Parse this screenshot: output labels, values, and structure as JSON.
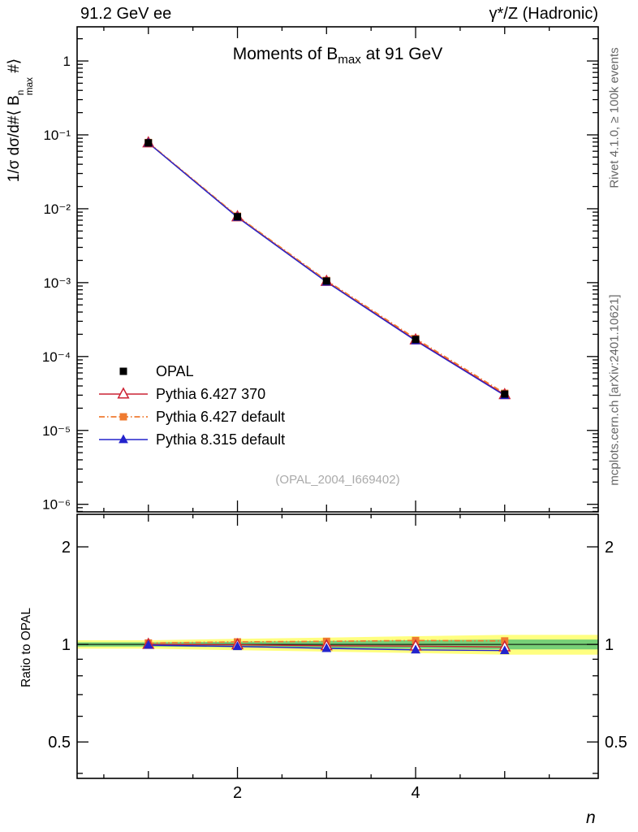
{
  "header": {
    "left": "91.2 GeV ee",
    "right": "γ*/Z (Hadronic)"
  },
  "titles": {
    "main_pre": "Moments of B",
    "main_sub": "max",
    "main_post": " at 91 GeV"
  },
  "watermark": "(OPAL_2004_I669402)",
  "axis_labels": {
    "y_main_pre": "1/σ  dσ/d#⟨ B",
    "y_main_sup": "n",
    "y_main_sub": "max",
    "y_main_post": " #⟩",
    "y_ratio": "Ratio to OPAL",
    "x": "n"
  },
  "side_notes": {
    "top": "Rivet 4.1.0, ≥ 100k events",
    "bottom": "mcplots.cern.ch [arXiv:2401.10621]"
  },
  "legend": {
    "items": [
      {
        "label": "OPAL",
        "marker": "square-filled",
        "color": "#000000",
        "line": "none"
      },
      {
        "label": "Pythia 6.427 370",
        "marker": "triangle-open",
        "color": "#cc2233",
        "line": "solid"
      },
      {
        "label": "Pythia 6.427 default",
        "marker": "square-filled",
        "color": "#ef7b30",
        "line": "dashdot"
      },
      {
        "label": "Pythia 8.315 default",
        "marker": "triangle-filled",
        "color": "#2323cc",
        "line": "solid"
      }
    ]
  },
  "colors": {
    "band_yellow": "#ffff80",
    "band_green": "#77d077",
    "reference": "#000000",
    "watermark": "#aaaaaa",
    "side_note": "#666666"
  },
  "chart_data": [
    {
      "type": "line",
      "title": "Moments of B_max at 91 GeV",
      "xlabel": "n",
      "ylabel": "1/σ dσ/d#⟨ B^n_max #⟩",
      "ylog": true,
      "x": [
        1,
        2,
        3,
        4,
        5
      ],
      "xlim": [
        0.2,
        6.05
      ],
      "ylim": [
        7.9e-07,
        2.9
      ],
      "x_ticks": {
        "values": [
          2,
          4
        ],
        "labels": [
          "2",
          "4"
        ]
      },
      "y_ticks": {
        "values": [
          1,
          0.1,
          0.01,
          0.001,
          0.0001,
          1e-05,
          1e-06
        ],
        "labels": [
          "1",
          "10⁻¹",
          "10⁻²",
          "10⁻³",
          "10⁻⁴",
          "10⁻⁵",
          "10⁻⁶"
        ]
      },
      "series": [
        {
          "name": "OPAL",
          "marker": "square-filled",
          "color": "#000000",
          "line": "none",
          "values": [
            0.078,
            0.0078,
            0.00105,
            0.00017,
            3.1e-05
          ],
          "errors": [
            0.003,
            0.0003,
            5e-05,
            1e-05,
            2e-06
          ]
        },
        {
          "name": "Pythia 6.427 370",
          "marker": "triangle-open",
          "color": "#cc2233",
          "line": "solid",
          "values": [
            0.078,
            0.00778,
            0.00104,
            0.000168,
            3.05e-05
          ]
        },
        {
          "name": "Pythia 6.427 default",
          "marker": "square-filled",
          "color": "#ef7b30",
          "line": "dashdot",
          "values": [
            0.0788,
            0.00794,
            0.00107,
            0.000175,
            3.18e-05
          ]
        },
        {
          "name": "Pythia 8.315 default",
          "marker": "triangle-filled",
          "color": "#2323cc",
          "line": "solid",
          "values": [
            0.0776,
            0.00768,
            0.00102,
            0.000164,
            2.97e-05
          ]
        }
      ]
    },
    {
      "type": "line",
      "title": "Ratio to OPAL",
      "ylog": true,
      "x": [
        1,
        2,
        3,
        4,
        5
      ],
      "ylim": [
        0.386,
        2.52
      ],
      "reference": 1,
      "y_ticks": {
        "values": [
          2,
          1,
          0.5
        ],
        "labels": [
          "2",
          "1",
          "0.5"
        ]
      },
      "series": [
        {
          "name": "Pythia 6.427 370",
          "marker": "triangle-open",
          "color": "#cc2233",
          "line": "solid",
          "values": [
            1.0,
            0.997,
            0.99,
            0.988,
            0.982
          ]
        },
        {
          "name": "Pythia 6.427 default",
          "marker": "square-filled",
          "color": "#ef7b30",
          "line": "dashdot",
          "values": [
            1.01,
            1.018,
            1.022,
            1.028,
            1.025
          ]
        },
        {
          "name": "Pythia 8.315 default",
          "marker": "triangle-filled",
          "color": "#2323cc",
          "line": "solid",
          "values": [
            0.995,
            0.985,
            0.972,
            0.962,
            0.957
          ]
        }
      ],
      "bands": {
        "yellow": {
          "lo": [
            0.97,
            0.96,
            0.95,
            0.94,
            0.93
          ],
          "hi": [
            1.03,
            1.04,
            1.05,
            1.06,
            1.07
          ]
        },
        "green": {
          "lo": [
            0.985,
            0.98,
            0.975,
            0.97,
            0.965
          ],
          "hi": [
            1.015,
            1.02,
            1.025,
            1.03,
            1.035
          ]
        }
      }
    }
  ]
}
